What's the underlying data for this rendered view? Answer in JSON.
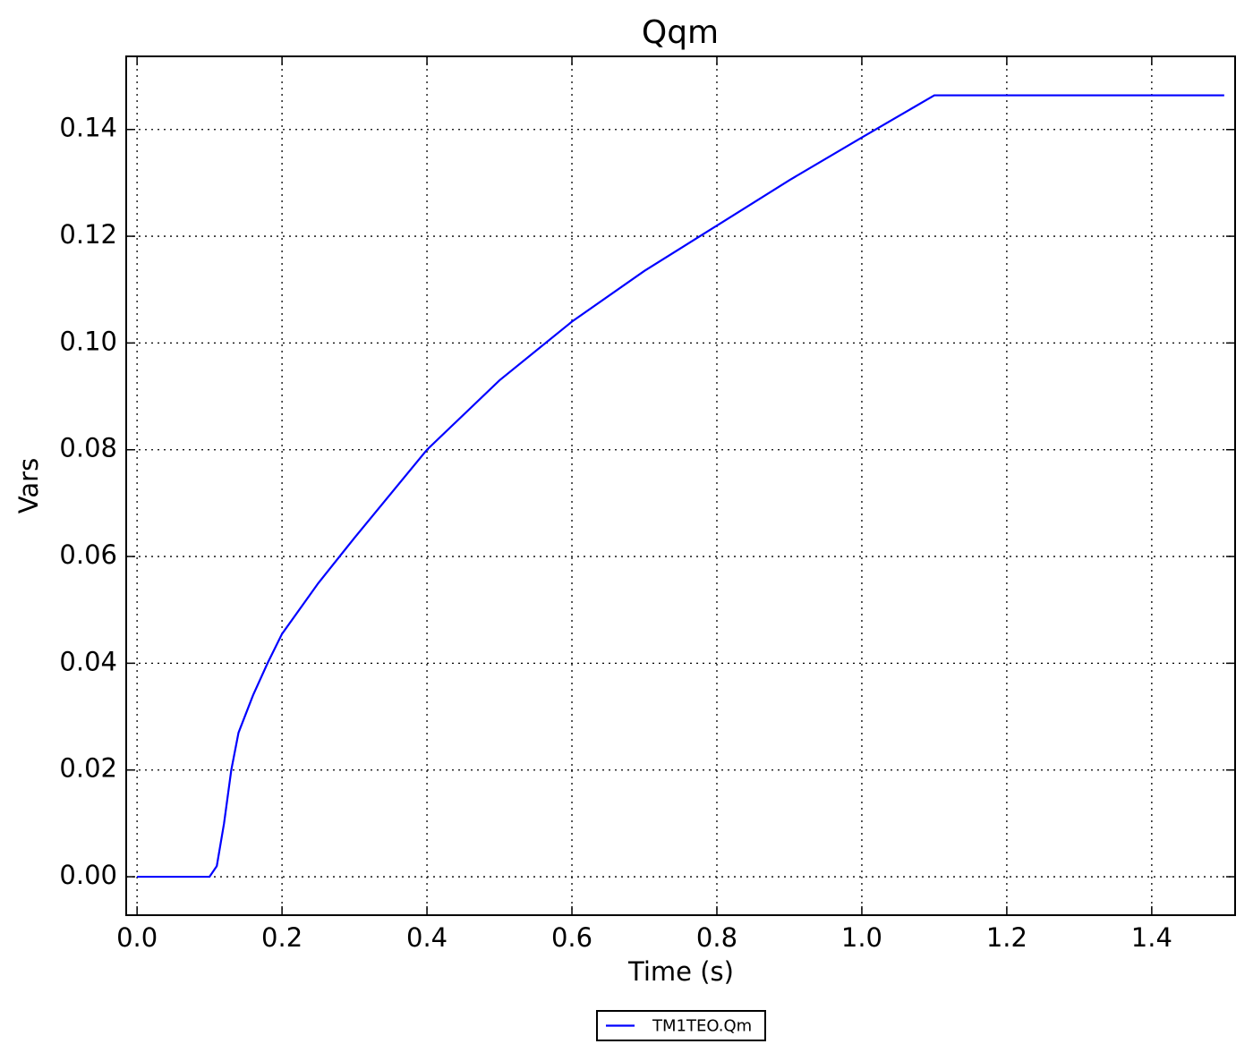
{
  "chart_data": {
    "type": "line",
    "title": "Qqm",
    "x_label": "Time (s)",
    "y_label": "Vars",
    "x": [
      0,
      0.1,
      0.11,
      0.12,
      0.13,
      0.14,
      0.16,
      0.18,
      0.2,
      0.25,
      0.3,
      0.4,
      0.5,
      0.6,
      0.7,
      0.8,
      0.9,
      1.0,
      1.1,
      1.5
    ],
    "series": [
      {
        "name": "TM1TEO.Qm",
        "color": "#0000ff",
        "values": [
          0,
          0,
          0.002,
          0.01,
          0.02,
          0.027,
          0.034,
          0.04,
          0.0455,
          0.055,
          0.0635,
          0.08,
          0.093,
          0.104,
          0.1135,
          0.122,
          0.1305,
          0.1385,
          0.1464,
          0.1464
        ]
      }
    ],
    "xlim": [
      -0.015,
      1.515
    ],
    "xticks": [
      {
        "value": 0,
        "label": "0.0"
      },
      0.2,
      0.4,
      0.6,
      0.8,
      {
        "value": 1,
        "label": "1.0"
      },
      1.2,
      1.4
    ],
    "ylim": [
      -0.0072,
      0.1537
    ],
    "yticks": [
      {
        "value": 0,
        "label": "0.00"
      },
      0.02,
      0.04,
      0.06,
      0.08,
      {
        "value": 0.1,
        "label": "0.10"
      },
      0.12,
      0.14
    ],
    "grid": true,
    "legend": "bottom"
  }
}
